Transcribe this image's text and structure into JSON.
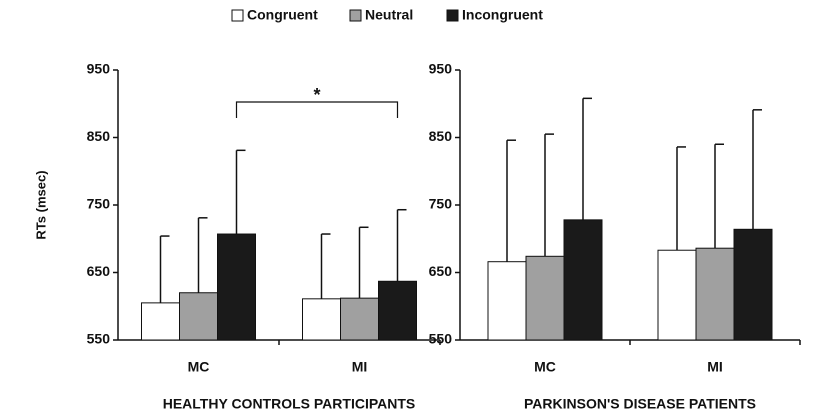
{
  "chart_data": [
    {
      "type": "bar",
      "x_label": "HEALTHY CONTROLS PARTICIPANTS",
      "y_label": "RTs (msec)",
      "categories": [
        "MC",
        "MI"
      ],
      "series": [
        {
          "name": "Congruent",
          "color": "#ffffff",
          "values": [
            605,
            611
          ],
          "errors": [
            99,
            96
          ]
        },
        {
          "name": "Neutral",
          "color": "#a0a0a0",
          "values": [
            620,
            612
          ],
          "errors": [
            111,
            105
          ]
        },
        {
          "name": "Incongruent",
          "color": "#1a1a1a",
          "values": [
            707,
            637
          ],
          "errors": [
            124,
            106
          ]
        }
      ],
      "ylim": [
        550,
        950
      ],
      "yticks": [
        550,
        650,
        750,
        850,
        950
      ],
      "grid": false,
      "annotations": [
        "*"
      ]
    },
    {
      "type": "bar",
      "x_label": "PARKINSON'S DISEASE PATIENTS",
      "categories": [
        "MC",
        "MI"
      ],
      "series": [
        {
          "name": "Congruent",
          "color": "#ffffff",
          "values": [
            666,
            683
          ],
          "errors": [
            180,
            153
          ]
        },
        {
          "name": "Neutral",
          "color": "#a0a0a0",
          "values": [
            674,
            686
          ],
          "errors": [
            181,
            154
          ]
        },
        {
          "name": "Incongruent",
          "color": "#1a1a1a",
          "values": [
            728,
            714
          ],
          "errors": [
            180,
            177
          ]
        }
      ],
      "ylim": [
        550,
        950
      ],
      "yticks": [
        550,
        650,
        750,
        850,
        950
      ],
      "grid": false
    }
  ]
}
